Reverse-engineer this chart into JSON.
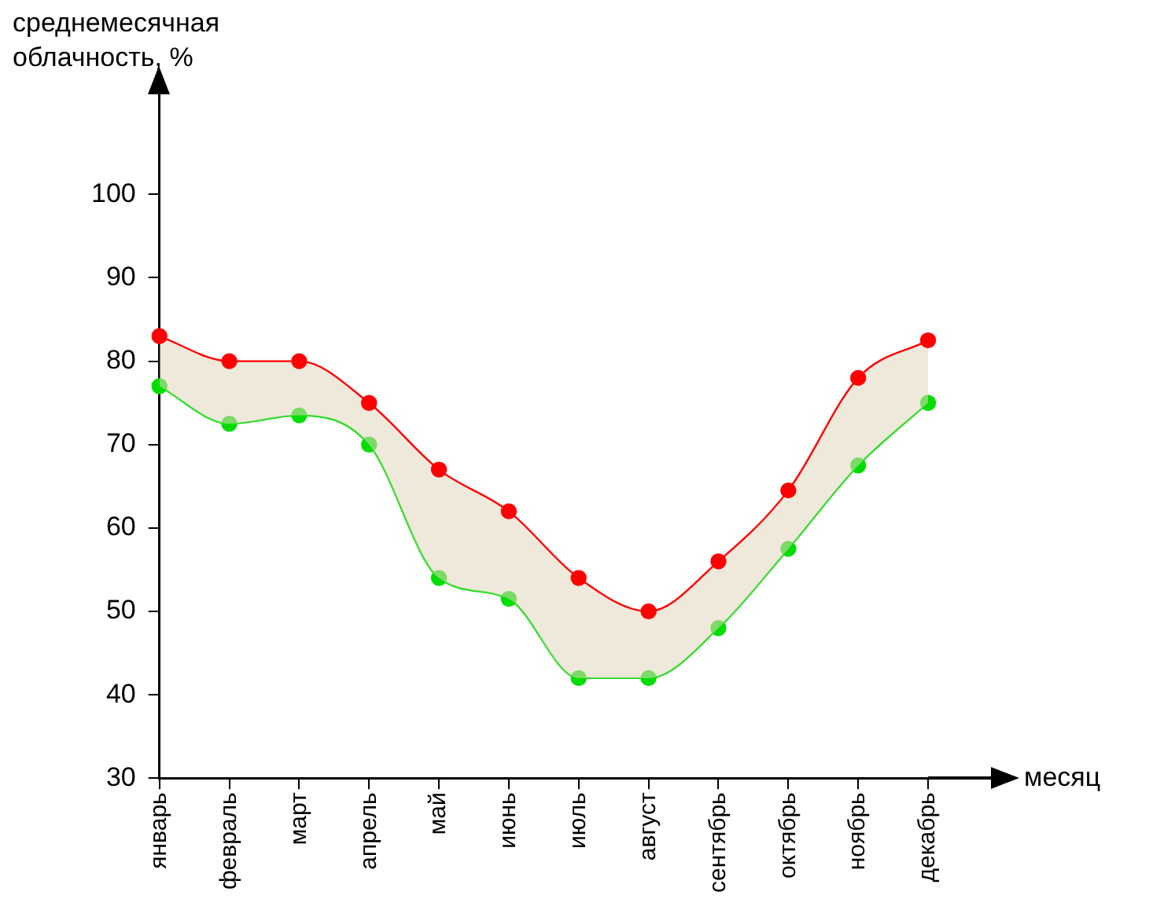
{
  "chart_data": {
    "type": "line",
    "ylabel": "среднемесячная\nоблачность, %",
    "xlabel": "месяц",
    "categories": [
      "январь",
      "февраль",
      "март",
      "апрель",
      "май",
      "июнь",
      "июль",
      "август",
      "сентябрь",
      "октябрь",
      "ноябрь",
      "декабрь"
    ],
    "series": [
      {
        "color": "#ff0000",
        "values": [
          83,
          80,
          80,
          75,
          67,
          62,
          54,
          50,
          56,
          64.5,
          78,
          82.5
        ],
        "lower": [
          77,
          72.5,
          73.5,
          70,
          54,
          51.5,
          42,
          42,
          48,
          57.5,
          67.5,
          75
        ],
        "upper": [
          83,
          80,
          80,
          75,
          67,
          62,
          54,
          50,
          56,
          64.5,
          78,
          82.5
        ]
      },
      {
        "color": "#00dd00",
        "values": [
          77,
          72.5,
          73.5,
          70,
          54,
          51.5,
          42,
          42,
          48,
          57.5,
          67.5,
          75
        ]
      }
    ],
    "ylim": [
      30,
      112
    ],
    "yticks": [
      30,
      40,
      50,
      60,
      70,
      80,
      90,
      100
    ],
    "grid": false,
    "legend": false,
    "marker": "circle",
    "line_style": "solid"
  }
}
